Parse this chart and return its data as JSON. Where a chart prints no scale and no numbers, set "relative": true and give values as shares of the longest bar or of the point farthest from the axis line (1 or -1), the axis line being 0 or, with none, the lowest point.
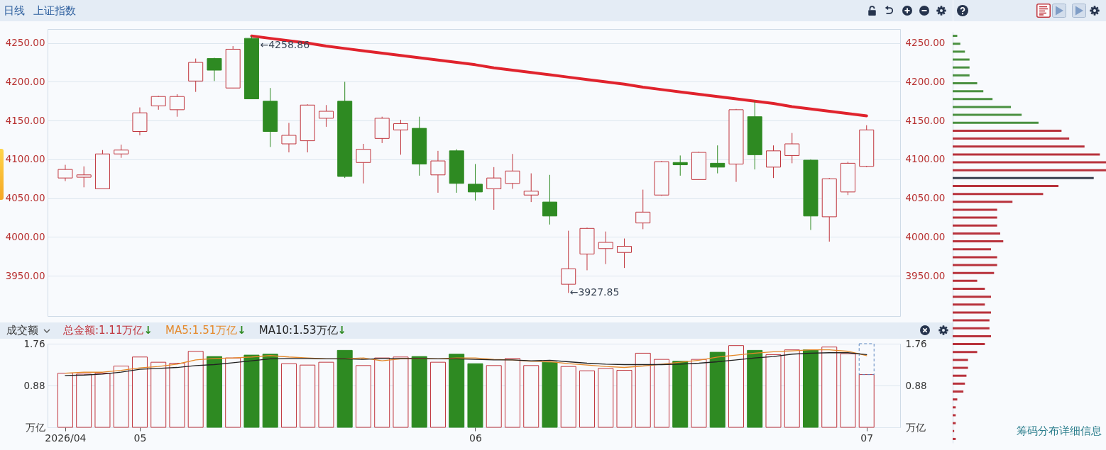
{
  "chart_data": [
    {
      "type": "candlestick",
      "title": "上证指数",
      "subtitle": "日线",
      "categories": [
        "2026/04",
        null,
        null,
        null,
        "05",
        null,
        null,
        null,
        null,
        null,
        null,
        null,
        null,
        null,
        null,
        null,
        null,
        null,
        null,
        null,
        null,
        null,
        "06",
        null,
        null,
        null,
        null,
        null,
        null,
        null,
        null,
        null,
        null,
        null,
        null,
        null,
        null,
        null,
        null,
        null,
        null,
        null,
        null,
        "07"
      ],
      "ohlc": [
        [
          4076,
          4093,
          4072,
          4087
        ],
        [
          4077,
          4091,
          4064,
          4080
        ],
        [
          4062,
          4112,
          4062,
          4107
        ],
        [
          4107,
          4119,
          4102,
          4112
        ],
        [
          4136,
          4167,
          4131,
          4160
        ],
        [
          4169,
          4182,
          4164,
          4181
        ],
        [
          4164,
          4184,
          4155,
          4181
        ],
        [
          4201,
          4230,
          4187,
          4225
        ],
        [
          4230,
          4231,
          4201,
          4215
        ],
        [
          4192,
          4246,
          4192,
          4242
        ],
        [
          4256,
          4258.86,
          4178,
          4178
        ],
        [
          4175,
          4192,
          4116,
          4136
        ],
        [
          4120,
          4147,
          4109,
          4131
        ],
        [
          4124,
          4171,
          4109,
          4170
        ],
        [
          4153,
          4170,
          4142,
          4162
        ],
        [
          4175,
          4200,
          4076,
          4078
        ],
        [
          4096,
          4120,
          4069,
          4113
        ],
        [
          4127,
          4155,
          4121,
          4153
        ],
        [
          4138,
          4151,
          4106,
          4146
        ],
        [
          4140,
          4155,
          4079,
          4094
        ],
        [
          4080,
          4111,
          4057,
          4098
        ],
        [
          4111,
          4113,
          4057,
          4069
        ],
        [
          4068,
          4094,
          4047,
          4058
        ],
        [
          4062,
          4090,
          4035,
          4076
        ],
        [
          4069,
          4107,
          4062,
          4085
        ],
        [
          4054,
          4082,
          4045,
          4059
        ],
        [
          4045,
          4080,
          4016,
          4027
        ],
        [
          3939,
          4008,
          3927.85,
          3959
        ],
        [
          3978,
          4012,
          3957,
          4011
        ],
        [
          3985,
          4007,
          3965,
          3993
        ],
        [
          3980,
          3998,
          3960,
          3988
        ],
        [
          4018,
          4061,
          4010,
          4032
        ],
        [
          4054,
          4098,
          4053,
          4097
        ],
        [
          4096,
          4105,
          4079,
          4093
        ],
        [
          4074,
          4110,
          4074,
          4109
        ],
        [
          4095,
          4118,
          4082,
          4090
        ],
        [
          4094,
          4165,
          4071,
          4164
        ],
        [
          4155,
          4175,
          4087,
          4106
        ],
        [
          4090,
          4118,
          4076,
          4111
        ],
        [
          4105,
          4134,
          4095,
          4120
        ],
        [
          4099,
          4100,
          4009,
          4027
        ],
        [
          4026,
          4076,
          3994,
          4075
        ],
        [
          4058,
          4097,
          4054,
          4095
        ],
        [
          4091,
          4144,
          4090,
          4138
        ]
      ],
      "colors": [
        "#c0353d",
        "#c0353d",
        "#c0353d",
        "#c0353d",
        "#c0353d",
        "#c0353d",
        "#c0353d",
        "#c0353d",
        "#2e8a22",
        "#c0353d",
        "#2e8a22",
        "#2e8a22",
        "#c0353d",
        "#c0353d",
        "#c0353d",
        "#2e8a22",
        "#c0353d",
        "#c0353d",
        "#c0353d",
        "#2e8a22",
        "#c0353d",
        "#2e8a22",
        "#2e8a22",
        "#c0353d",
        "#c0353d",
        "#c0353d",
        "#2e8a22",
        "#c0353d",
        "#c0353d",
        "#c0353d",
        "#c0353d",
        "#c0353d",
        "#c0353d",
        "#2e8a22",
        "#c0353d",
        "#2e8a22",
        "#c0353d",
        "#2e8a22",
        "#c0353d",
        "#c0353d",
        "#2e8a22",
        "#c0353d",
        "#c0353d",
        "#c0353d"
      ],
      "series": [
        {
          "type": "line",
          "color": "#e0232d",
          "values": [
            null,
            null,
            null,
            null,
            null,
            null,
            null,
            null,
            null,
            null,
            4259,
            4256,
            4253,
            4250,
            4246,
            4243,
            4240,
            4237,
            4234,
            4231,
            4228,
            4225,
            4222,
            4218,
            4215,
            4212,
            4209,
            4206,
            4203,
            4200,
            4197,
            4193,
            4190,
            4187,
            4184,
            4181,
            4178,
            4175,
            4172,
            4168,
            4165,
            4162,
            4159,
            4156
          ]
        }
      ],
      "ylim": [
        3898,
        4268
      ],
      "yticks": [
        {
          "value": 3950,
          "label": "3950.00"
        },
        {
          "value": 4000,
          "label": "4000.00"
        },
        {
          "value": 4050,
          "label": "4050.00"
        },
        {
          "value": 4100,
          "label": "4100.00"
        },
        {
          "value": 4150,
          "label": "4150.00"
        },
        {
          "value": 4200,
          "label": "4200.00"
        },
        {
          "value": 4250,
          "label": "4250.00"
        }
      ],
      "y2lim": [
        3898,
        4268
      ],
      "y2ticks": [
        {
          "value": 3950,
          "label": "3950.00"
        },
        {
          "value": 4000,
          "label": "4000.00"
        },
        {
          "value": 4050,
          "label": "4050.00"
        },
        {
          "value": 4100,
          "label": "4100.00"
        },
        {
          "value": 4150,
          "label": "4150.00"
        },
        {
          "value": 4200,
          "label": "4200.00"
        },
        {
          "value": 4250,
          "label": "4250.00"
        }
      ],
      "annotations": [
        "←4258.86",
        "←3927.85"
      ],
      "grid": "y",
      "tick_labels": "y"
    },
    {
      "type": "bar",
      "title": "成交额",
      "stacked": true,
      "categories": [
        "2026/04",
        null,
        null,
        null,
        "05",
        null,
        null,
        null,
        null,
        null,
        null,
        null,
        null,
        null,
        null,
        null,
        null,
        null,
        null,
        null,
        null,
        null,
        "06",
        null,
        null,
        null,
        null,
        null,
        null,
        null,
        null,
        null,
        null,
        null,
        null,
        null,
        null,
        null,
        null,
        null,
        null,
        null,
        null,
        "07"
      ],
      "series": [
        {
          "name": "总金额:1.11万亿↓",
          "colors": [
            "#c0353d",
            "#c0353d",
            "#c0353d",
            "#c0353d",
            "#c0353d",
            "#c0353d",
            "#c0353d",
            "#c0353d",
            "#2e8a22",
            "#c0353d",
            "#2e8a22",
            "#2e8a22",
            "#c0353d",
            "#c0353d",
            "#c0353d",
            "#2e8a22",
            "#c0353d",
            "#c0353d",
            "#c0353d",
            "#2e8a22",
            "#c0353d",
            "#2e8a22",
            "#2e8a22",
            "#c0353d",
            "#c0353d",
            "#c0353d",
            "#2e8a22",
            "#c0353d",
            "#c0353d",
            "#c0353d",
            "#c0353d",
            "#c0353d",
            "#c0353d",
            "#2e8a22",
            "#c0353d",
            "#2e8a22",
            "#c0353d",
            "#2e8a22",
            "#c0353d",
            "#c0353d",
            "#2e8a22",
            "#c0353d",
            "#c0353d",
            "#c0353d"
          ],
          "values": [
            1.14,
            1.12,
            1.14,
            1.29,
            1.48,
            1.37,
            1.35,
            1.6,
            1.49,
            1.46,
            1.52,
            1.54,
            1.34,
            1.31,
            1.37,
            1.62,
            1.3,
            1.46,
            1.48,
            1.49,
            1.37,
            1.54,
            1.34,
            1.3,
            1.45,
            1.3,
            1.37,
            1.28,
            1.19,
            1.24,
            1.2,
            1.56,
            1.43,
            1.39,
            1.43,
            1.58,
            1.72,
            1.62,
            1.53,
            1.63,
            1.63,
            1.69,
            1.55,
            1.11
          ]
        },
        {
          "color": "#5b87c0",
          "line_style": "dashed",
          "values": [
            null,
            null,
            null,
            null,
            null,
            null,
            null,
            null,
            null,
            null,
            null,
            null,
            null,
            null,
            null,
            null,
            null,
            null,
            null,
            null,
            null,
            null,
            null,
            null,
            null,
            null,
            null,
            null,
            null,
            null,
            null,
            null,
            null,
            null,
            null,
            null,
            null,
            null,
            null,
            null,
            null,
            null,
            null,
            0.65
          ]
        },
        {
          "type": "line",
          "name": "MA5:1.51万亿↓",
          "color": "#e5892a",
          "values": [
            1.14,
            1.16,
            1.16,
            1.2,
            1.25,
            1.28,
            1.33,
            1.42,
            1.45,
            1.46,
            1.48,
            1.51,
            1.48,
            1.46,
            1.44,
            1.44,
            1.46,
            1.4,
            1.44,
            1.45,
            1.44,
            1.46,
            1.46,
            1.43,
            1.42,
            1.39,
            1.38,
            1.34,
            1.31,
            1.28,
            1.26,
            1.29,
            1.33,
            1.37,
            1.41,
            1.48,
            1.52,
            1.56,
            1.59,
            1.61,
            1.63,
            1.63,
            1.6,
            1.51
          ]
        },
        {
          "type": "line",
          "name": "MA10:1.53万亿↓",
          "color": "#222222",
          "values": [
            1.09,
            1.1,
            1.12,
            1.16,
            1.22,
            1.24,
            1.26,
            1.3,
            1.32,
            1.36,
            1.4,
            1.44,
            1.45,
            1.45,
            1.44,
            1.44,
            1.43,
            1.45,
            1.45,
            1.45,
            1.44,
            1.44,
            1.43,
            1.42,
            1.42,
            1.4,
            1.41,
            1.38,
            1.35,
            1.33,
            1.32,
            1.32,
            1.32,
            1.33,
            1.35,
            1.38,
            1.42,
            1.46,
            1.49,
            1.54,
            1.56,
            1.57,
            1.57,
            1.53
          ]
        }
      ],
      "ylim": [
        0,
        1.76
      ],
      "yticks": [
        {
          "value": 0,
          "label": "万亿"
        },
        0.88,
        1.76
      ],
      "y2lim": [
        0,
        1.76
      ],
      "y2ticks": [
        {
          "value": 0,
          "label": "万亿"
        },
        0.88,
        1.76
      ],
      "grid": "y",
      "legend": "top left"
    },
    {
      "type": "bar",
      "orientation": "horizontal",
      "relative": true,
      "categories": [
        null,
        null,
        null,
        null,
        null,
        null,
        null,
        null,
        null,
        null,
        null,
        null,
        null,
        null,
        null,
        null,
        null,
        null,
        null,
        null,
        null,
        null,
        null,
        null,
        null,
        null,
        null,
        null,
        null,
        null,
        null,
        null,
        null,
        null,
        null,
        null,
        null,
        null,
        null,
        null,
        null,
        null,
        null,
        null,
        null,
        null,
        null,
        null,
        null,
        null,
        null,
        null
      ],
      "values": [
        0.03,
        0.05,
        0.08,
        0.11,
        0.11,
        0.11,
        0.16,
        0.2,
        0.26,
        0.38,
        0.45,
        0.56,
        0.71,
        0.76,
        0.86,
        0.96,
        1,
        1,
        0.92,
        0.69,
        0.59,
        0.39,
        0.29,
        0.29,
        0.29,
        0.31,
        0.33,
        0.25,
        0.29,
        0.29,
        0.27,
        0.16,
        0.21,
        0.25,
        0.21,
        0.25,
        0.24,
        0.24,
        0.25,
        0.21,
        0.16,
        0.1,
        0.1,
        0.09,
        0.08,
        0.07,
        0.03,
        0.02,
        0.02,
        0.02,
        0.01,
        0.02
      ],
      "colors": [
        "#4a9040",
        "#4a9040",
        "#4a9040",
        "#4a9040",
        "#4a9040",
        "#4a9040",
        "#4a9040",
        "#4a9040",
        "#4a9040",
        "#4a9040",
        "#4a9040",
        "#4a9040",
        "#b8323c",
        "#b8323c",
        "#b8323c",
        "#b8323c",
        "#b8323c",
        "#b8323c",
        "#3a4150",
        "#b8323c",
        "#b8323c",
        "#b8323c",
        "#b8323c",
        "#b8323c",
        "#b8323c",
        "#b8323c",
        "#b8323c",
        "#b8323c",
        "#b8323c",
        "#b8323c",
        "#b8323c",
        "#b8323c",
        "#b8323c",
        "#b8323c",
        "#b8323c",
        "#b8323c",
        "#b8323c",
        "#b8323c",
        "#b8323c",
        "#b8323c",
        "#b8323c",
        "#b8323c",
        "#b8323c",
        "#b8323c",
        "#b8323c",
        "#b8323c",
        "#b8323c",
        "#b8323c",
        "#b8323c",
        "#b8323c",
        "#b8323c",
        "#b8323c"
      ],
      "annotations": [
        "筹码分布详细信息"
      ]
    }
  ]
}
